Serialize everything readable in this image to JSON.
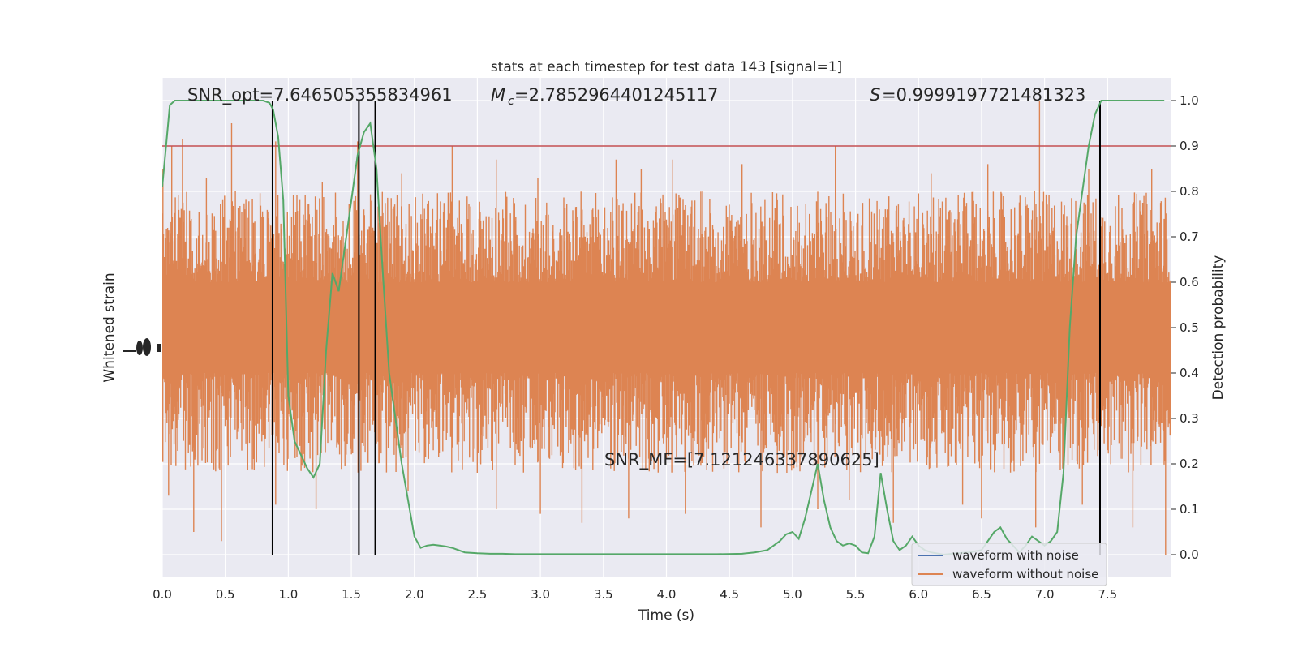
{
  "chart_data": {
    "type": "line",
    "title": "stats at each timestep for test data 143 [signal=1]",
    "xlabel": "Time (s)",
    "ylabel_left": "Whitened strain",
    "ylabel_right": "Detection probability",
    "xlim": [
      0.0,
      8.0
    ],
    "xticks": [
      "0.0",
      "0.5",
      "1.0",
      "1.5",
      "2.0",
      "2.5",
      "3.0",
      "3.5",
      "4.0",
      "4.5",
      "5.0",
      "5.5",
      "6.0",
      "6.5",
      "7.0",
      "7.5"
    ],
    "ylim_right": [
      -0.05,
      1.05
    ],
    "yticks_right": [
      "0.0",
      "0.1",
      "0.2",
      "0.3",
      "0.4",
      "0.5",
      "0.6",
      "0.7",
      "0.8",
      "0.9",
      "1.0"
    ],
    "threshold": 0.9,
    "detection_markers": [
      0.875,
      1.56,
      1.69,
      7.44
    ],
    "annotations": {
      "snr_opt": "SNR_opt=7.646505355834961",
      "mc": "=2.7852964401245117",
      "s": "=0.9999197721481323",
      "snr_mf": "SNR_MF=[7.121246337890625]"
    },
    "legend": {
      "placement": "lower-right",
      "entries": [
        "waveform with noise",
        "waveform without noise"
      ]
    },
    "series": [
      {
        "name": "waveform with noise",
        "color": "#4c72b0"
      },
      {
        "name": "waveform without noise",
        "color": "#dd8452",
        "band_center": 0.5,
        "band_core_halfwidth": 0.1,
        "typical_extent": [
          0.2,
          0.78
        ],
        "peak_values": [
          [
            0.005,
            0.85
          ],
          [
            0.075,
            0.9
          ],
          [
            0.16,
            0.915
          ],
          [
            0.35,
            0.83
          ],
          [
            0.55,
            0.95
          ],
          [
            0.58,
            0.8
          ],
          [
            0.9,
            0.91
          ],
          [
            1.27,
            0.82
          ],
          [
            1.55,
            0.91
          ],
          [
            1.9,
            0.84
          ],
          [
            2.3,
            0.9
          ],
          [
            2.65,
            0.87
          ],
          [
            2.98,
            0.83
          ],
          [
            3.6,
            0.87
          ],
          [
            3.8,
            0.85
          ],
          [
            4.05,
            0.87
          ],
          [
            4.6,
            0.86
          ],
          [
            5.34,
            0.9
          ],
          [
            6.1,
            0.84
          ],
          [
            6.55,
            0.86
          ],
          [
            6.92,
            0.8
          ],
          [
            6.96,
            1.0
          ],
          [
            7.35,
            0.85
          ],
          [
            7.85,
            0.85
          ]
        ],
        "trough_values": [
          [
            0.05,
            0.13
          ],
          [
            0.25,
            0.05
          ],
          [
            0.47,
            0.03
          ],
          [
            0.9,
            0.11
          ],
          [
            1.22,
            0.1
          ],
          [
            1.95,
            0.14
          ],
          [
            2.65,
            0.1
          ],
          [
            3.0,
            0.09
          ],
          [
            3.33,
            0.07
          ],
          [
            3.7,
            0.08
          ],
          [
            4.15,
            0.09
          ],
          [
            4.75,
            0.06
          ],
          [
            5.2,
            0.1
          ],
          [
            5.45,
            0.12
          ],
          [
            5.8,
            0.07
          ],
          [
            6.35,
            0.11
          ],
          [
            6.5,
            0.08
          ],
          [
            6.93,
            0.06
          ],
          [
            7.3,
            0.11
          ],
          [
            7.7,
            0.06
          ],
          [
            7.96,
            0.0
          ]
        ]
      },
      {
        "name": "detection probability",
        "color": "#55a868",
        "x": [
          0.0,
          0.03,
          0.06,
          0.1,
          0.14,
          0.2,
          0.3,
          0.4,
          0.5,
          0.6,
          0.7,
          0.8,
          0.85,
          0.88,
          0.92,
          0.96,
          1.0,
          1.05,
          1.1,
          1.15,
          1.2,
          1.25,
          1.3,
          1.35,
          1.4,
          1.45,
          1.5,
          1.55,
          1.6,
          1.65,
          1.7,
          1.75,
          1.8,
          1.85,
          1.9,
          1.95,
          2.0,
          2.05,
          2.1,
          2.15,
          2.2,
          2.25,
          2.3,
          2.4,
          2.5,
          2.6,
          2.7,
          2.8,
          2.9,
          3.0,
          3.2,
          3.4,
          3.6,
          3.8,
          4.0,
          4.2,
          4.4,
          4.6,
          4.7,
          4.8,
          4.85,
          4.9,
          4.95,
          5.0,
          5.05,
          5.1,
          5.15,
          5.2,
          5.25,
          5.3,
          5.35,
          5.4,
          5.45,
          5.5,
          5.55,
          5.6,
          5.65,
          5.7,
          5.75,
          5.8,
          5.85,
          5.9,
          5.95,
          6.0,
          6.05,
          6.1,
          6.2,
          6.3,
          6.4,
          6.5,
          6.55,
          6.6,
          6.65,
          6.7,
          6.75,
          6.8,
          6.85,
          6.9,
          6.95,
          7.0,
          7.05,
          7.1,
          7.15,
          7.2,
          7.25,
          7.3,
          7.35,
          7.4,
          7.45,
          7.5,
          7.55,
          7.6,
          7.7,
          7.8,
          7.9,
          7.95
        ],
        "values": [
          0.81,
          0.9,
          0.99,
          1.0,
          1.0,
          1.0,
          1.0,
          1.0,
          1.0,
          1.0,
          1.0,
          1.0,
          0.995,
          0.98,
          0.92,
          0.78,
          0.35,
          0.25,
          0.22,
          0.19,
          0.17,
          0.2,
          0.45,
          0.62,
          0.58,
          0.68,
          0.78,
          0.88,
          0.93,
          0.95,
          0.85,
          0.62,
          0.4,
          0.3,
          0.2,
          0.12,
          0.04,
          0.015,
          0.02,
          0.022,
          0.02,
          0.018,
          0.015,
          0.005,
          0.003,
          0.002,
          0.002,
          0.001,
          0.001,
          0.001,
          0.001,
          0.001,
          0.001,
          0.001,
          0.001,
          0.001,
          0.001,
          0.002,
          0.005,
          0.01,
          0.02,
          0.03,
          0.045,
          0.05,
          0.035,
          0.08,
          0.14,
          0.2,
          0.12,
          0.06,
          0.03,
          0.02,
          0.025,
          0.02,
          0.005,
          0.003,
          0.04,
          0.18,
          0.1,
          0.03,
          0.01,
          0.02,
          0.04,
          0.02,
          0.01,
          0.005,
          0.0,
          0.003,
          0.005,
          0.01,
          0.03,
          0.05,
          0.06,
          0.035,
          0.02,
          0.005,
          0.02,
          0.04,
          0.03,
          0.02,
          0.03,
          0.05,
          0.18,
          0.5,
          0.7,
          0.8,
          0.9,
          0.97,
          1.0,
          1.0,
          1.0,
          1.0,
          1.0,
          1.0,
          1.0,
          1.0
        ]
      }
    ],
    "colors": {
      "background": "#eaeaf2",
      "grid": "#ffffff",
      "threshold": "#c44e52",
      "markers": "#000000"
    }
  }
}
